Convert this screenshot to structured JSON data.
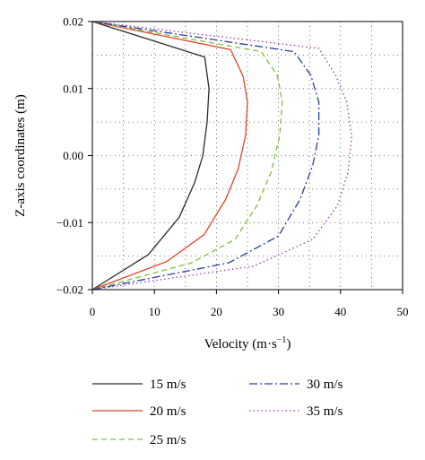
{
  "chart_data": {
    "type": "line",
    "xlabel": "Velocity (m·s",
    "xlabel_sup": "−1",
    "xlabel_close": ")",
    "ylabel": "Z-axis coordinates (m)",
    "xlim": [
      0,
      50
    ],
    "ylim": [
      -0.02,
      0.02
    ],
    "x_ticks": [
      "0",
      "10",
      "20",
      "30",
      "40",
      "50"
    ],
    "y_ticks": [
      "−0.02",
      "−0.01",
      "0.00",
      "0.01",
      "0.02"
    ],
    "grid": true,
    "legend_position": "bottom",
    "series": [
      {
        "name": "15 m/s",
        "color": "#2b2b2b",
        "dash": "",
        "points": [
          [
            0,
            -0.02
          ],
          [
            9,
            -0.0148
          ],
          [
            14,
            -0.0092
          ],
          [
            16.5,
            -0.004
          ],
          [
            17.8,
            0
          ],
          [
            18.5,
            0.005
          ],
          [
            18.8,
            0.01
          ],
          [
            18.1,
            0.0147
          ],
          [
            0,
            0.02
          ]
        ]
      },
      {
        "name": "20 m/s",
        "color": "#e0452a",
        "dash": "",
        "points": [
          [
            0,
            -0.02
          ],
          [
            12,
            -0.0158
          ],
          [
            18,
            -0.0118
          ],
          [
            21.5,
            -0.0065
          ],
          [
            23.5,
            -0.002
          ],
          [
            24.7,
            0.003
          ],
          [
            25,
            0.008
          ],
          [
            24.3,
            0.0118
          ],
          [
            22.3,
            0.0158
          ],
          [
            0,
            0.02
          ]
        ]
      },
      {
        "name": "25 m/s",
        "color": "#7cbf3a",
        "dash": "6,4",
        "points": [
          [
            0,
            -0.02
          ],
          [
            16,
            -0.016
          ],
          [
            23,
            -0.0125
          ],
          [
            26.5,
            -0.0075
          ],
          [
            28.8,
            -0.0025
          ],
          [
            30.2,
            0.003
          ],
          [
            30.6,
            0.008
          ],
          [
            29.8,
            0.012
          ],
          [
            27.2,
            0.0155
          ],
          [
            0,
            0.02
          ]
        ]
      },
      {
        "name": "30 m/s",
        "color": "#2a3c9a",
        "dash": "9,3,2,3",
        "points": [
          [
            0,
            -0.02
          ],
          [
            22,
            -0.016
          ],
          [
            30,
            -0.012
          ],
          [
            33.5,
            -0.0065
          ],
          [
            35.5,
            -0.0015
          ],
          [
            36.5,
            0.003
          ],
          [
            36.5,
            0.008
          ],
          [
            35.2,
            0.012
          ],
          [
            32.5,
            0.0155
          ],
          [
            0,
            0.02
          ]
        ]
      },
      {
        "name": "35 m/s",
        "color": "#8e3fae",
        "dash": "1.5,3",
        "points": [
          [
            0,
            -0.02
          ],
          [
            26,
            -0.0165
          ],
          [
            35.5,
            -0.0125
          ],
          [
            39.5,
            -0.0075
          ],
          [
            41.2,
            -0.0025
          ],
          [
            41.8,
            0.003
          ],
          [
            41,
            0.008
          ],
          [
            39.2,
            0.012
          ],
          [
            36.5,
            0.016
          ],
          [
            0,
            0.02
          ]
        ]
      }
    ]
  }
}
